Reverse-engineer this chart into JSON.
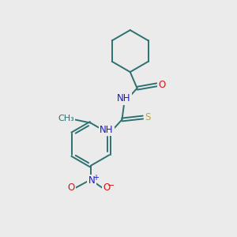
{
  "background_color": "#ebebeb",
  "bond_color": "#2d7070",
  "atom_colors": {
    "N": "#1a1acc",
    "O": "#cc1a1a",
    "S": "#ccaa00",
    "C": "#2d7070"
  },
  "figsize": [
    3.0,
    3.0
  ],
  "dpi": 100,
  "xlim": [
    0,
    10
  ],
  "ylim": [
    0,
    10
  ]
}
